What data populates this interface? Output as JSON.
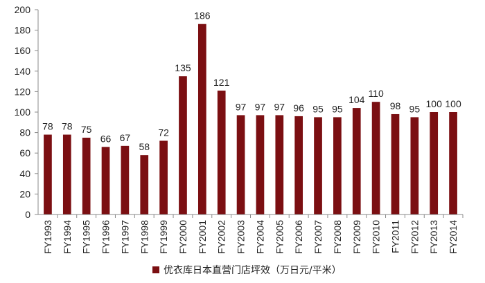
{
  "colors": {
    "bar": "#7B0F12",
    "axis": "#888888",
    "text": "#222222"
  },
  "chart_data": {
    "type": "bar",
    "categories": [
      "FY1993",
      "FY1994",
      "FY1995",
      "FY1996",
      "FY1997",
      "FY1998",
      "FY1999",
      "FY2000",
      "FY2001",
      "FY2002",
      "FY2003",
      "FY2004",
      "FY2005",
      "FY2006",
      "FY2007",
      "FY2008",
      "FY2009",
      "FY2010",
      "FY2011",
      "FY2012",
      "FY2013",
      "FY2014"
    ],
    "series": [
      {
        "name": "优衣库日本直营门店坪效（万日元/平米）",
        "values": [
          78,
          78,
          75,
          66,
          67,
          58,
          72,
          135,
          186,
          121,
          97,
          97,
          97,
          96,
          95,
          95,
          104,
          110,
          98,
          95,
          100,
          100
        ]
      }
    ],
    "ylim": [
      0,
      200
    ],
    "yticks": [
      0,
      20,
      40,
      60,
      80,
      100,
      120,
      140,
      160,
      180,
      200
    ],
    "grid": false,
    "legend_position": "bottom",
    "data_labels": true
  }
}
